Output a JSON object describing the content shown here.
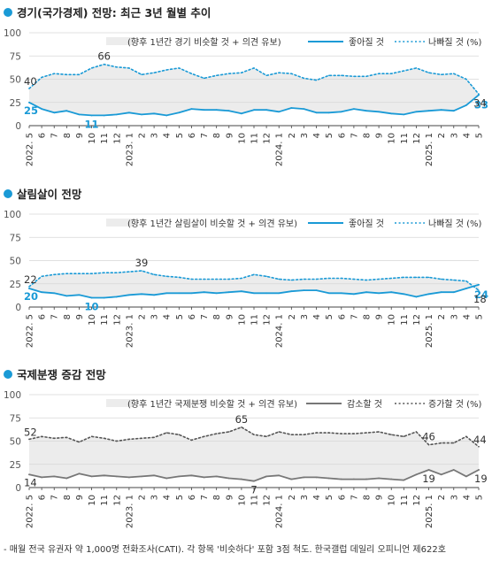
{
  "colors": {
    "accent": "#1a9ad6",
    "band": "#ececec",
    "grid": "#d6d6d6",
    "axis": "#444444",
    "decline": "#777777",
    "increase": "#555555"
  },
  "chart_data": [
    {
      "type": "line",
      "title": "경기(국가경제) 전망:  최근 3년 월별 추이",
      "ylim": [
        0,
        100
      ],
      "yticks": [
        "0",
        "25",
        "50",
        "75",
        "100"
      ],
      "x": [
        "2022. 5",
        "6",
        "7",
        "8",
        "9",
        "10",
        "11",
        "12",
        "2023. 1",
        "2",
        "3",
        "4",
        "5",
        "6",
        "7",
        "8",
        "9",
        "10",
        "11",
        "12",
        "2024. 1",
        "2",
        "3",
        "4",
        "5",
        "6",
        "7",
        "8",
        "9",
        "10",
        "11",
        "12",
        "2025. 1",
        "2",
        "3",
        "4",
        "5"
      ],
      "legend": {
        "band": "(향후 1년간 경기 비슷할 것 + 의견 유보)",
        "optimistic": "좋아질 것",
        "pessimistic": "나빠질 것  (%)"
      },
      "series": [
        {
          "name": "좋아질 것",
          "values": [
            25,
            18,
            14,
            16,
            12,
            11,
            11,
            12,
            14,
            12,
            13,
            11,
            14,
            18,
            17,
            17,
            16,
            13,
            17,
            17,
            15,
            19,
            18,
            14,
            14,
            15,
            18,
            16,
            15,
            13,
            12,
            15,
            16,
            17,
            16,
            22,
            33
          ]
        },
        {
          "name": "나빠질 것",
          "values": [
            40,
            52,
            56,
            55,
            55,
            62,
            66,
            63,
            62,
            55,
            57,
            60,
            62,
            56,
            51,
            54,
            56,
            57,
            62,
            54,
            57,
            56,
            51,
            49,
            54,
            54,
            53,
            53,
            56,
            56,
            59,
            62,
            57,
            55,
            56,
            50,
            34
          ]
        }
      ],
      "data_labels": {
        "opt_first": "25",
        "opt_min": "11",
        "opt_last": "33",
        "pes_first": "40",
        "pes_max": "66",
        "pes_last": "34"
      }
    },
    {
      "type": "line",
      "title": "살림살이 전망",
      "ylim": [
        0,
        100
      ],
      "yticks": [
        "0",
        "25",
        "50",
        "75",
        "100"
      ],
      "x": [
        "2022. 5",
        "6",
        "7",
        "8",
        "9",
        "10",
        "11",
        "12",
        "2023. 1",
        "2",
        "3",
        "4",
        "5",
        "6",
        "7",
        "8",
        "9",
        "10",
        "11",
        "12",
        "2024. 1",
        "2",
        "3",
        "4",
        "5",
        "6",
        "7",
        "8",
        "9",
        "10",
        "11",
        "12",
        "2025. 1",
        "2",
        "3",
        "4",
        "5"
      ],
      "legend": {
        "band": "(향후 1년간 살림살이 비슷할 것 + 의견 유보)",
        "optimistic": "좋아질 것",
        "pessimistic": "나빠질 것  (%)"
      },
      "series": [
        {
          "name": "좋아질 것",
          "values": [
            20,
            16,
            15,
            12,
            13,
            10,
            10,
            11,
            13,
            14,
            13,
            15,
            15,
            15,
            16,
            15,
            16,
            17,
            15,
            15,
            15,
            17,
            18,
            18,
            15,
            15,
            14,
            16,
            15,
            16,
            14,
            11,
            14,
            16,
            16,
            20,
            24
          ]
        },
        {
          "name": "나빠질 것",
          "values": [
            22,
            33,
            35,
            36,
            36,
            36,
            37,
            37,
            38,
            39,
            35,
            33,
            32,
            30,
            30,
            30,
            30,
            31,
            35,
            33,
            30,
            29,
            30,
            30,
            31,
            31,
            30,
            29,
            30,
            31,
            32,
            32,
            32,
            30,
            29,
            28,
            18
          ]
        }
      ],
      "data_labels": {
        "opt_first": "20",
        "opt_min": "10",
        "opt_last": "24",
        "pes_first": "22",
        "pes_max": "39",
        "pes_last": "18"
      }
    },
    {
      "type": "line",
      "title": "국제분쟁 증감 전망",
      "ylim": [
        0,
        100
      ],
      "yticks": [
        "0",
        "25",
        "50",
        "75",
        "100"
      ],
      "x": [
        "2022. 5",
        "6",
        "7",
        "8",
        "9",
        "10",
        "11",
        "12",
        "2023. 1",
        "2",
        "3",
        "4",
        "5",
        "6",
        "7",
        "8",
        "9",
        "10",
        "11",
        "12",
        "2024. 1",
        "2",
        "3",
        "4",
        "5",
        "6",
        "7",
        "8",
        "9",
        "10",
        "11",
        "12",
        "2025. 1",
        "2",
        "3",
        "4",
        "5"
      ],
      "legend": {
        "band": "(향후 1년간 국제분쟁 비슷할 것 + 의견 유보)",
        "optimistic": "감소할 것",
        "pessimistic": "증가할 것  (%)"
      },
      "series": [
        {
          "name": "감소할 것",
          "values": [
            14,
            11,
            12,
            10,
            15,
            12,
            13,
            12,
            11,
            12,
            13,
            10,
            12,
            13,
            11,
            12,
            10,
            9,
            7,
            12,
            13,
            9,
            11,
            11,
            10,
            9,
            9,
            9,
            10,
            9,
            8,
            14,
            19,
            14,
            19,
            12,
            19
          ]
        },
        {
          "name": "증가할 것",
          "values": [
            52,
            55,
            53,
            54,
            49,
            55,
            53,
            50,
            52,
            53,
            54,
            59,
            57,
            51,
            55,
            58,
            60,
            65,
            57,
            55,
            60,
            57,
            57,
            59,
            59,
            58,
            58,
            59,
            60,
            57,
            55,
            60,
            46,
            48,
            48,
            55,
            44
          ]
        }
      ],
      "data_labels": {
        "opt_first": "14",
        "opt_min": "7",
        "opt_last": "19",
        "opt_extra": "19",
        "pes_first": "52",
        "pes_max": "65",
        "pes_last": "44",
        "pes_extra": "46"
      }
    }
  ],
  "footnote": "- 매월 전국 유권자 약 1,000명 전화조사(CATI). 각 항목 '비슷하다' 포함 3점 척도. 한국갤럽 데일리 오피니언 제622호"
}
